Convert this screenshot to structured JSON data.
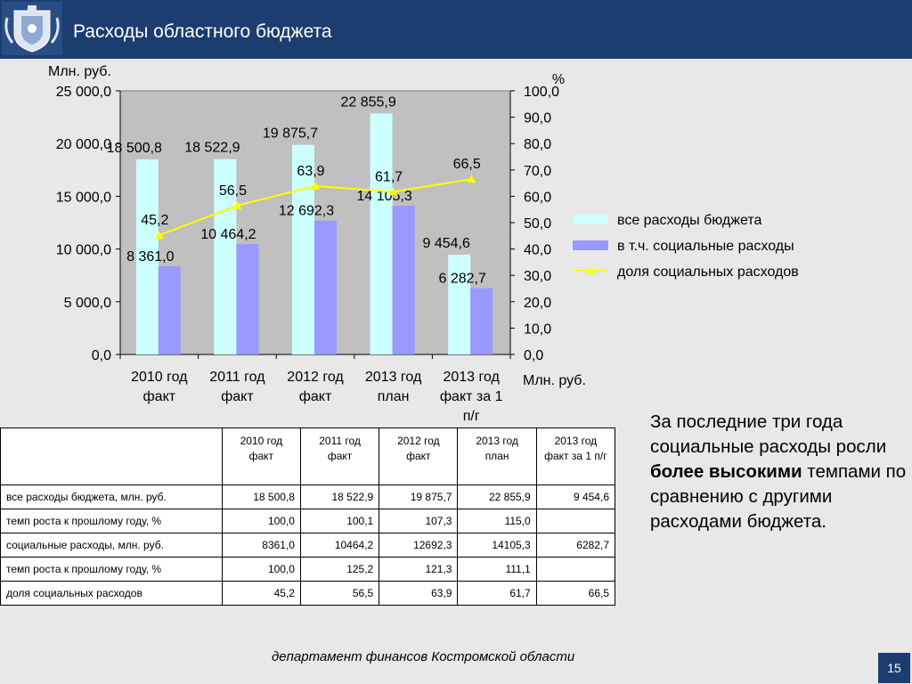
{
  "header": {
    "title": "Расходы областного бюджета"
  },
  "chart_data": {
    "type": "bar",
    "categories": [
      [
        "2010 год",
        "факт"
      ],
      [
        "2011 год",
        "факт"
      ],
      [
        "2012 год",
        "факт"
      ],
      [
        "2013 год",
        "план"
      ],
      [
        "2013 год",
        "факт за 1",
        "п/г"
      ]
    ],
    "y_left_label": "Млн. руб.",
    "y_right_label": "%",
    "x_right_label": "Млн. руб.",
    "y_left_ticks": [
      "0,0",
      "5 000,0",
      "10 000,0",
      "15 000,0",
      "20 000,0",
      "25 000,0"
    ],
    "y_right_ticks": [
      "0,0",
      "10,0",
      "20,0",
      "30,0",
      "40,0",
      "50,0",
      "60,0",
      "70,0",
      "80,0",
      "90,0",
      "100,0"
    ],
    "ylim_left": [
      0,
      25000
    ],
    "ylim_right": [
      0,
      100
    ],
    "series": [
      {
        "name": "все расходы бюджета",
        "type": "bar",
        "axis": "left",
        "color": "#ccffff",
        "values": [
          18500.8,
          18522.9,
          19875.7,
          22855.9,
          9454.6
        ],
        "labels": [
          "18 500,8",
          "18 522,9",
          "19 875,7",
          "22 855,9",
          "9 454,6"
        ]
      },
      {
        "name": "в т.ч. социальные расходы",
        "type": "bar",
        "axis": "left",
        "color": "#9999ff",
        "values": [
          8361.0,
          10464.2,
          12692.3,
          14105.3,
          6282.7
        ],
        "labels": [
          "8 361,0",
          "10 464,2",
          "12 692,3",
          "14 105,3",
          "6 282,7"
        ]
      },
      {
        "name": "доля социальных расходов",
        "type": "line",
        "axis": "right",
        "color": "#ffff00",
        "values": [
          45.2,
          56.5,
          63.9,
          61.7,
          66.5
        ],
        "labels": [
          "45,2",
          "56,5",
          "63,9",
          "61,7",
          "66,5"
        ]
      }
    ],
    "plot_background": "#c0c0c0",
    "legend_position": "right"
  },
  "table": {
    "headers": [
      "2010 год факт",
      "2011 год факт",
      "2012 год факт",
      "2013 год план",
      "2013 год факт за 1 п/г"
    ],
    "rows": [
      {
        "label": "все расходы бюджета, млн. руб.",
        "cells": [
          "18 500,8",
          "18 522,9",
          "19 875,7",
          "22 855,9",
          "9 454,6"
        ]
      },
      {
        "label": "темп роста к прошлому году, %",
        "cells": [
          "100,0",
          "100,1",
          "107,3",
          "115,0",
          ""
        ]
      },
      {
        "label": "социальные расходы, млн. руб.",
        "cells": [
          "8361,0",
          "10464,2",
          "12692,3",
          "14105,3",
          "6282,7"
        ]
      },
      {
        "label": "темп роста к прошлому году, %",
        "cells": [
          "100,0",
          "125,2",
          "121,3",
          "111,1",
          ""
        ]
      },
      {
        "label": "доля социальных расходов",
        "cells": [
          "45,2",
          "56,5",
          "63,9",
          "61,7",
          "66,5"
        ]
      }
    ]
  },
  "note": {
    "before": "За последние три года социальные расходы росли ",
    "bold": "более высокими",
    "after": " темпами по сравнению с другими расходами бюджета."
  },
  "footer": {
    "text": "департамент финансов  Костромской области"
  },
  "page_number": "15",
  "colors": {
    "header": "#1c3d70",
    "page_bg": "#e8e8e8"
  }
}
